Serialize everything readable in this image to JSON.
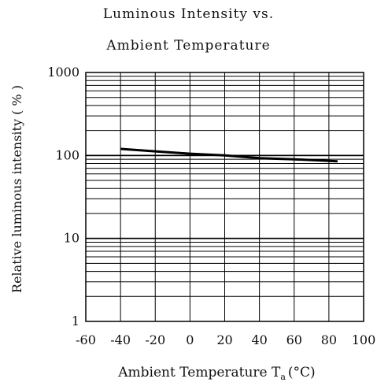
{
  "chart_data": {
    "type": "line",
    "title_line1": "Luminous Intensity vs.",
    "title_line2": "Ambient Temperature",
    "xlabel": "Ambient Temperature T",
    "xlabel_subscript": "a",
    "xlabel_unit": "(°C)",
    "ylabel": "Relative luminous intensity ( % )",
    "xlim": [
      -60,
      100
    ],
    "ylim": [
      1,
      1000
    ],
    "yscale": "log",
    "grid": true,
    "x_ticks": [
      -60,
      -40,
      -20,
      0,
      20,
      40,
      60,
      80,
      100
    ],
    "x_tick_labels": [
      "-60",
      "-40",
      "-20",
      "0",
      "20",
      "40",
      "60",
      "80",
      "100"
    ],
    "y_ticks": [
      1,
      10,
      100,
      1000
    ],
    "y_tick_labels": [
      "1",
      "10",
      "100",
      "1000"
    ],
    "series": [
      {
        "x": [
          -40,
          -20,
          0,
          20,
          40,
          60,
          85
        ],
        "y": [
          120,
          112,
          105,
          100,
          93,
          90,
          85
        ],
        "color": "#000000"
      }
    ]
  }
}
